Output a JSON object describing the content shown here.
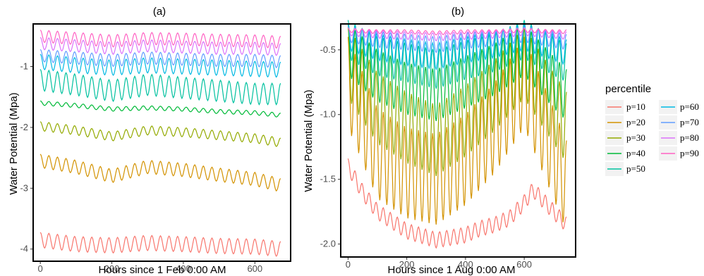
{
  "chart_data": [
    {
      "panel_label": "(a)",
      "type": "line",
      "xlabel": "Hours since 1  Feb 0:00 AM",
      "ylabel": "Water Potential (Mpa)",
      "xlim": [
        -20,
        700
      ],
      "ylim": [
        -4.2,
        -0.3
      ],
      "xticks": [
        0,
        200,
        400,
        600
      ],
      "yticks": [
        -4,
        -3,
        -2,
        -1
      ],
      "grid": false,
      "series": [
        {
          "name": "p=10",
          "x": [
            0,
            100,
            200,
            300,
            400,
            500,
            600,
            672
          ],
          "y": [
            -3.85,
            -3.92,
            -3.94,
            -3.9,
            -3.92,
            -3.95,
            -3.96,
            -4.0
          ],
          "daily_amplitude": 0.25
        },
        {
          "name": "p=20",
          "x": [
            0,
            100,
            200,
            300,
            400,
            500,
            600,
            672
          ],
          "y": [
            -2.55,
            -2.65,
            -2.8,
            -2.65,
            -2.7,
            -2.78,
            -2.85,
            -2.95
          ],
          "daily_amplitude": 0.22
        },
        {
          "name": "p=30",
          "x": [
            0,
            100,
            200,
            300,
            400,
            500,
            600,
            672
          ],
          "y": [
            -1.98,
            -2.05,
            -2.15,
            -2.05,
            -2.08,
            -2.13,
            -2.18,
            -2.25
          ],
          "daily_amplitude": 0.15
        },
        {
          "name": "p=40",
          "x": [
            0,
            100,
            200,
            300,
            400,
            500,
            600,
            672
          ],
          "y": [
            -1.6,
            -1.64,
            -1.7,
            -1.68,
            -1.7,
            -1.74,
            -1.76,
            -1.8
          ],
          "daily_amplitude": 0.07
        },
        {
          "name": "p=50",
          "x": [
            0,
            100,
            200,
            300,
            400,
            500,
            600,
            672
          ],
          "y": [
            -1.22,
            -1.3,
            -1.4,
            -1.3,
            -1.35,
            -1.4,
            -1.45,
            -1.45
          ],
          "daily_amplitude": 0.35
        },
        {
          "name": "p=60",
          "x": [
            0,
            100,
            200,
            300,
            400,
            500,
            600,
            672
          ],
          "y": [
            -0.92,
            -0.98,
            -1.02,
            -0.98,
            -1.0,
            -1.02,
            -1.04,
            -1.05
          ],
          "daily_amplitude": 0.25
        },
        {
          "name": "p=70",
          "x": [
            0,
            100,
            200,
            300,
            400,
            500,
            600,
            672
          ],
          "y": [
            -0.82,
            -0.86,
            -0.9,
            -0.86,
            -0.88,
            -0.9,
            -0.9,
            -0.92
          ],
          "daily_amplitude": 0.2
        },
        {
          "name": "p=80",
          "x": [
            0,
            100,
            200,
            300,
            400,
            500,
            600,
            672
          ],
          "y": [
            -0.62,
            -0.66,
            -0.7,
            -0.66,
            -0.68,
            -0.7,
            -0.7,
            -0.72
          ],
          "daily_amplitude": 0.2
        },
        {
          "name": "p=90",
          "x": [
            0,
            100,
            200,
            300,
            400,
            500,
            600,
            672
          ],
          "y": [
            -0.5,
            -0.54,
            -0.58,
            -0.54,
            -0.55,
            -0.57,
            -0.58,
            -0.6
          ],
          "daily_amplitude": 0.2
        }
      ]
    },
    {
      "panel_label": "(b)",
      "type": "line",
      "xlabel": "Hours since 1 Aug  0:00 AM",
      "ylabel": "Water Potential (Mpa)",
      "xlim": [
        -25,
        775
      ],
      "ylim": [
        -2.1,
        -0.3
      ],
      "xticks": [
        0,
        200,
        400,
        600
      ],
      "yticks": [
        -2.0,
        -1.5,
        -1.0,
        -0.5
      ],
      "ytick_labels": [
        "-2.0",
        "-1.5",
        "-1.0",
        "-0.5"
      ],
      "grid": false,
      "series": [
        {
          "name": "p=10",
          "x": [
            0,
            50,
            100,
            200,
            300,
            400,
            450,
            500,
            550,
            600,
            630,
            700,
            744
          ],
          "y": [
            -1.4,
            -1.6,
            -1.75,
            -1.9,
            -1.97,
            -1.93,
            -1.88,
            -1.85,
            -1.8,
            -1.68,
            -1.58,
            -1.75,
            -1.85
          ],
          "daily_amplitude": 0.12
        },
        {
          "name": "p=20",
          "x": [
            0,
            100,
            200,
            300,
            400,
            500,
            600,
            700,
            744
          ],
          "y": [
            -0.75,
            -1.3,
            -1.45,
            -1.5,
            -1.35,
            -1.1,
            -0.75,
            -1.3,
            -1.55
          ],
          "daily_amplitude": 0.7
        },
        {
          "name": "p=30",
          "x": [
            0,
            100,
            200,
            300,
            400,
            500,
            600,
            700,
            744
          ],
          "y": [
            -0.6,
            -0.95,
            -1.1,
            -1.2,
            -1.05,
            -0.85,
            -0.6,
            -0.95,
            -1.1
          ],
          "daily_amplitude": 0.55
        },
        {
          "name": "p=40",
          "x": [
            0,
            100,
            200,
            300,
            400,
            500,
            600,
            700,
            744
          ],
          "y": [
            -0.5,
            -0.7,
            -0.8,
            -0.85,
            -0.75,
            -0.65,
            -0.5,
            -0.75,
            -0.85
          ],
          "daily_amplitude": 0.4
        },
        {
          "name": "p=50",
          "x": [
            0,
            100,
            200,
            300,
            400,
            500,
            600,
            700,
            744
          ],
          "y": [
            -0.42,
            -0.55,
            -0.6,
            -0.65,
            -0.58,
            -0.52,
            -0.42,
            -0.55,
            -0.6
          ],
          "daily_amplitude": 0.3
        },
        {
          "name": "p=60",
          "x": [
            0,
            100,
            200,
            300,
            400,
            500,
            600,
            700,
            744
          ],
          "y": [
            -0.4,
            -0.48,
            -0.52,
            -0.55,
            -0.5,
            -0.46,
            -0.4,
            -0.48,
            -0.52
          ],
          "daily_amplitude": 0.2
        },
        {
          "name": "p=70",
          "x": [
            0,
            100,
            200,
            300,
            400,
            500,
            600,
            700,
            744
          ],
          "y": [
            -0.38,
            -0.42,
            -0.44,
            -0.46,
            -0.43,
            -0.41,
            -0.38,
            -0.42,
            -0.44
          ],
          "daily_amplitude": 0.12
        },
        {
          "name": "p=80",
          "x": [
            0,
            100,
            200,
            300,
            400,
            500,
            600,
            700,
            744
          ],
          "y": [
            -0.36,
            -0.38,
            -0.39,
            -0.4,
            -0.39,
            -0.38,
            -0.36,
            -0.38,
            -0.39
          ],
          "daily_amplitude": 0.06
        },
        {
          "name": "p=90",
          "x": [
            0,
            100,
            200,
            300,
            400,
            500,
            600,
            700,
            744
          ],
          "y": [
            -0.35,
            -0.36,
            -0.36,
            -0.37,
            -0.36,
            -0.36,
            -0.35,
            -0.36,
            -0.36
          ],
          "daily_amplitude": 0.03
        }
      ]
    }
  ],
  "legend": {
    "title": "percentile",
    "placement": "right",
    "entries": [
      {
        "label": "p=10",
        "color": "#F8766D"
      },
      {
        "label": "p=20",
        "color": "#D39200"
      },
      {
        "label": "p=30",
        "color": "#93AA00"
      },
      {
        "label": "p=40",
        "color": "#00BA38"
      },
      {
        "label": "p=50",
        "color": "#00C19F"
      },
      {
        "label": "p=60",
        "color": "#00B9E3"
      },
      {
        "label": "p=70",
        "color": "#619CFF"
      },
      {
        "label": "p=80",
        "color": "#DB72FB"
      },
      {
        "label": "p=90",
        "color": "#FF61C3"
      }
    ]
  }
}
